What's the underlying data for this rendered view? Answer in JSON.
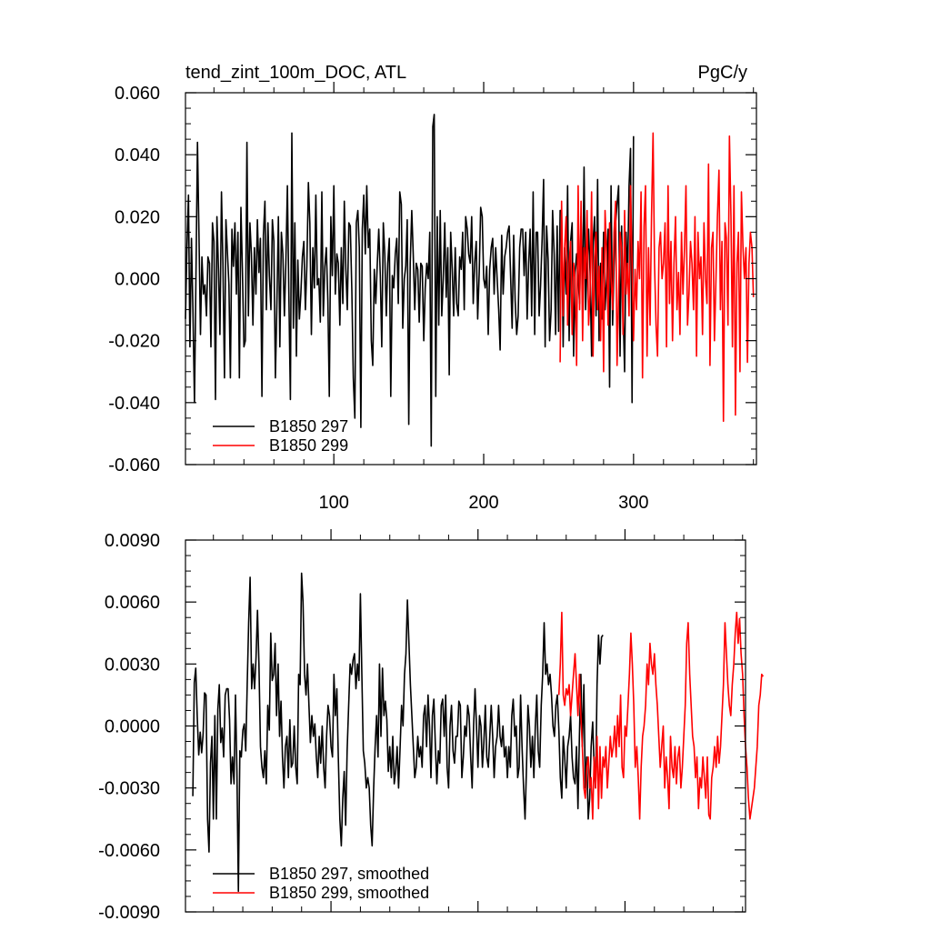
{
  "chart_data": [
    {
      "type": "line",
      "title": "tend_zint_100m_DOC, ATL",
      "units": "PgC/y",
      "xlabel": "",
      "ylabel": "",
      "xlim": [
        1,
        382
      ],
      "ylim": [
        -0.06,
        0.06
      ],
      "x_ticks": [
        100,
        200,
        300
      ],
      "y_ticks": [
        -0.06,
        -0.04,
        -0.02,
        0.0,
        0.02,
        0.04,
        0.06
      ],
      "y_tick_labels": [
        "-0.060",
        "-0.040",
        "-0.020",
        "0.000",
        "0.020",
        "0.040",
        "0.060"
      ],
      "x_tick_labels": [
        "100",
        "200",
        "300"
      ],
      "grid": false,
      "legend_position": "bottom-left",
      "series": [
        {
          "name": "B1850 297",
          "color": "#000000",
          "x_start": 1,
          "values": [
            -0.013,
            0.01,
            0.027,
            -0.022,
            0.013,
            -0.01,
            -0.04,
            0.0,
            0.044,
            0.015,
            -0.018,
            0.007,
            -0.005,
            -0.002,
            -0.012,
            0.007,
            0.005,
            -0.022,
            0.018,
            0.012,
            -0.039,
            0.02,
            0.003,
            -0.018,
            0.028,
            0.005,
            -0.032,
            0.019,
            0.008,
            -0.002,
            -0.032,
            0.016,
            0.004,
            0.018,
            -0.005,
            0.015,
            -0.032,
            0.023,
            0.003,
            -0.022,
            -0.02,
            0.044,
            -0.012,
            0.018,
            0.008,
            -0.015,
            0.01,
            -0.005,
            0.019,
            0.002,
            0.013,
            -0.038,
            0.014,
            0.025,
            -0.01,
            0.018,
            0.001,
            -0.01,
            0.019,
            0.012,
            -0.032,
            -0.009,
            0.02,
            -0.022,
            0.015,
            0.008,
            -0.012,
            0.005,
            0.03,
            -0.005,
            -0.039,
            0.047,
            -0.016,
            0.018,
            -0.025,
            0.006,
            -0.013,
            -0.005,
            0.007,
            0.012,
            -0.01,
            0.004,
            0.031,
            0.018,
            -0.018,
            0.01,
            -0.003,
            0.027,
            -0.002,
            0.0,
            -0.014,
            0.028,
            -0.012,
            0.004,
            0.01,
            -0.007,
            -0.038,
            0.02,
            0.001,
            0.03,
            -0.005,
            0.008,
            0.005,
            -0.015,
            0.01,
            -0.008,
            0.025,
            0.003,
            -0.01,
            0.018,
            0.017,
            -0.004,
            -0.032,
            -0.045,
            0.018,
            0.022,
            0.01,
            -0.048,
            0.016,
            0.027,
            0.008,
            0.03,
            0.01,
            0.016,
            -0.02,
            -0.028,
            0.003,
            -0.008,
            0.005,
            0.016,
            0.001,
            -0.022,
            0.018,
            0.008,
            -0.012,
            0.005,
            0.013,
            -0.038,
            0.001,
            -0.003,
            0.008,
            0.013,
            -0.008,
            0.028,
            0.024,
            -0.016,
            0.0,
            0.004,
            0.019,
            -0.047,
            0.005,
            0.022,
            0.008,
            -0.01,
            0.005,
            0.003,
            -0.014,
            0.005,
            0.004,
            -0.02,
            -0.003,
            0.005,
            0.0,
            0.015,
            -0.054,
            0.049,
            0.053,
            -0.038,
            0.02,
            -0.015,
            0.022,
            -0.012,
            0.0,
            0.018,
            -0.006,
            0.01,
            -0.031,
            0.015,
            0.003,
            -0.012,
            0.01,
            -0.008,
            -0.012,
            0.007,
            0.003,
            0.015,
            -0.01,
            0.02,
            0.016,
            0.008,
            0.005,
            0.02,
            -0.008,
            0.005,
            0.012,
            -0.013,
            0.002,
            0.023,
            0.02,
            0.0,
            -0.003,
            0.004,
            -0.018,
            0.003,
            0.01,
            0.013,
            -0.005,
            0.01,
            0.0,
            -0.01,
            -0.023,
            0.014,
            -0.005,
            0.007,
            0.01,
            0.015,
            0.017,
            0.0,
            -0.016,
            0.014,
            -0.007,
            -0.018,
            -0.012,
            0.01,
            0.016,
            0.016,
            0.001,
            0.015,
            -0.013,
            0.005,
            0.016,
            -0.012,
            0.028,
            -0.018,
            0.015,
            0.015,
            -0.012,
            -0.002,
            0.013,
            0.032,
            -0.022,
            0.017,
            0.006,
            -0.02,
            -0.01,
            0.022,
            0.008,
            -0.018,
            0.017,
            -0.017,
            0.022,
            0.022,
            -0.022,
            0.01,
            -0.005,
            0.03,
            -0.02,
            0.012,
            0.018,
            -0.025,
            0.002,
            0.008,
            0.0,
            -0.008,
            0.02,
            -0.005,
            0.036,
            -0.01,
            0.004,
            0.016,
            0.002,
            -0.025,
            0.012,
            0.02,
            -0.012,
            0.032,
            -0.02,
            0.005,
            -0.013,
            0.015,
            -0.01,
            0.0,
            0.016,
            -0.035,
            0.03,
            -0.015,
            0.004,
            0.018,
            0.024,
            0.03,
            -0.025,
            0.017,
            -0.01,
            -0.03,
            0.015,
            0.0,
            0.03,
            0.042,
            -0.04,
            0.046
          ]
        },
        {
          "name": "B1850 299",
          "color": "#ff0000",
          "x_start": 251,
          "values": [
            -0.027,
            0.025,
            -0.012,
            0.01,
            0.02,
            -0.015,
            0.005,
            0.012,
            -0.018,
            0.005,
            0.0,
            -0.028,
            0.03,
            -0.01,
            0.025,
            -0.02,
            0.01,
            0.0,
            0.022,
            -0.015,
            -0.005,
            0.028,
            -0.025,
            0.007,
            0.015,
            -0.01,
            0.004,
            -0.02,
            0.01,
            -0.03,
            0.022,
            0.008,
            -0.015,
            0.018,
            0.0,
            -0.01,
            0.015,
            0.025,
            -0.028,
            -0.005,
            0.015,
            0.01,
            -0.018,
            0.022,
            -0.005,
            0.005,
            -0.012,
            0.03,
            0.005,
            -0.02,
            0.003,
            -0.01,
            0.012,
            0.0,
            0.028,
            -0.032,
            0.017,
            0.03,
            -0.025,
            0.01,
            -0.015,
            0.02,
            0.047,
            0.005,
            -0.015,
            -0.025,
            0.01,
            0.015,
            0.0,
            0.005,
            0.018,
            -0.022,
            0.03,
            -0.008,
            0.012,
            -0.02,
            0.005,
            0.02,
            -0.01,
            0.002,
            -0.018,
            0.015,
            -0.005,
            0.01,
            0.03,
            -0.015,
            -0.005,
            0.012,
            0.005,
            -0.01,
            0.02,
            -0.025,
            0.015,
            0.0,
            0.007,
            -0.018,
            0.018,
            0.0,
            -0.008,
            0.037,
            -0.028,
            0.01,
            0.015,
            -0.02,
            0.0,
            0.02,
            0.035,
            -0.01,
            0.012,
            -0.046,
            0.018,
            0.013,
            -0.015,
            0.046,
            0.02,
            -0.022,
            0.03,
            -0.044,
            0.005,
            0.015,
            -0.03,
            0.028,
            0.01,
            0.0,
            0.01,
            -0.027,
            0.005,
            0.015,
            0.01,
            -0.006
          ]
        }
      ]
    },
    {
      "type": "line",
      "title": "",
      "xlabel": "",
      "ylabel": "",
      "xlim": [
        1,
        382
      ],
      "ylim": [
        -0.009,
        0.009
      ],
      "x_ticks": [
        100,
        200,
        300
      ],
      "x_tick_labels": [],
      "y_ticks": [
        -0.009,
        -0.006,
        -0.003,
        0.0,
        0.003,
        0.006,
        0.009
      ],
      "y_tick_labels": [
        "-0.0090",
        "-0.0060",
        "-0.0030",
        "0.0000",
        "0.0030",
        "0.0060",
        "0.0090"
      ],
      "grid": false,
      "legend_position": "bottom-left",
      "series": [
        {
          "name": "B1850 297, smoothed",
          "color": "#000000",
          "x_start": 6,
          "values": [
            -0.0034,
            0.0021,
            0.0028,
            0.0005,
            -0.0014,
            -0.0003,
            -0.0013,
            -0.0004,
            0.0016,
            0.0015,
            -0.0045,
            -0.0061,
            -0.0018,
            -0.0005,
            -0.0045,
            0.0005,
            -0.0045,
            0.0008,
            0.002,
            -0.0008,
            -0.0001,
            -0.0015,
            0.0015,
            0.0018,
            0.0018,
            0.0003,
            -0.0028,
            -0.0015,
            -0.0028,
            0.0015,
            -0.0022,
            -0.008,
            -0.0012,
            -0.0015,
            -0.0002,
            0.0001,
            -0.0012,
            0.002,
            0.005,
            0.0072,
            0.0018,
            0.003,
            0.0018,
            0.0033,
            0.0056,
            0.003,
            -0.001,
            -0.002,
            -0.0025,
            -0.0012,
            -0.0028,
            0.001,
            -0.0002,
            0.0045,
            0.0022,
            0.0025,
            0.004,
            0.0005,
            0.003,
            -0.0005,
            0.0012,
            -0.0015,
            -0.003,
            -0.001,
            -0.0005,
            -0.0025,
            0.0003,
            -0.002,
            -0.0018,
            0.0,
            -0.002,
            -0.0028,
            0.0025,
            0.002,
            0.0074,
            0.006,
            0.0025,
            0.0015,
            0.003,
            0.001,
            -0.0008,
            0.0005,
            -0.0005,
            0.0001,
            -0.0015,
            -0.0025,
            -0.0005,
            -0.0018,
            0.0,
            -0.002,
            -0.003,
            -0.0005,
            0.001,
            0.0005,
            -0.001,
            -0.0015,
            0.0025,
            0.0005,
            0.0018,
            -0.0015,
            -0.0045,
            -0.0058,
            -0.0035,
            -0.0022,
            -0.0048,
            -0.0012,
            0.001,
            0.003,
            0.0025,
            0.0032,
            0.0035,
            0.0018,
            0.003,
            0.0022,
            0.0064,
            0.0025,
            -0.0012,
            -0.0018,
            -0.003,
            -0.0025,
            -0.003,
            -0.0048,
            -0.0058,
            -0.003,
            -0.001,
            0.0005,
            -0.0015,
            0.003,
            -0.0005,
            0.0028,
            0.0005,
            0.0012,
            0.0003,
            -0.0022,
            -0.001,
            -0.0025,
            -0.0005,
            -0.0028,
            -0.0022,
            -0.001,
            -0.003,
            -0.001,
            0.001,
            0.0,
            0.0025,
            0.0035,
            0.0061,
            0.004,
            0.002,
            0.0005,
            -0.001,
            -0.0025,
            -0.002,
            -0.0005,
            -0.0015,
            -0.001,
            -0.002,
            0.0005,
            0.001,
            -0.001,
            0.0015,
            0.0,
            -0.0025,
            0.0005,
            0.0013,
            -0.001,
            -0.0028,
            -0.0012,
            -0.0018,
            0.001,
            0.0013,
            -0.0005,
            0.0015,
            -0.002,
            -0.003,
            0.0,
            0.001,
            -0.0012,
            -0.0018,
            -0.0005,
            -0.0005,
            0.0012,
            0.001,
            -0.0025,
            -0.0015,
            0.0,
            -0.0005,
            0.001,
            0.0005,
            -0.0015,
            -0.003,
            0.0,
            0.0018,
            0.0,
            -0.002,
            0.0005,
            0.0,
            -0.002,
            -0.0008,
            0.001,
            -0.0015,
            -0.002,
            -0.0005,
            0.001,
            -0.0005,
            -0.0025,
            -0.001,
            -0.0005,
            0.001,
            -0.0005,
            -0.001,
            0.0,
            -0.0015,
            -0.001,
            -0.0025,
            -0.001,
            -0.002,
            0.0005,
            0.0013,
            -0.0005,
            0.0,
            -0.0025,
            -0.002,
            0.0015,
            -0.001,
            -0.003,
            -0.0045,
            -0.002,
            0.001,
            0.0,
            -0.002,
            -0.0005,
            -0.0025,
            0.0,
            0.0015,
            -0.0012,
            -0.002,
            0.001,
            0.0025,
            0.005,
            0.0025,
            0.003,
            0.002,
            0.0025,
            0.0015,
            0.0,
            -0.0005,
            0.001,
            0.0015,
            -0.0002,
            -0.0025,
            -0.0035,
            -0.0005,
            -0.0015,
            -0.003,
            -0.001,
            -0.0005,
            0.0005,
            -0.0015,
            -0.0025,
            -0.0028,
            -0.001,
            -0.004,
            -0.0005,
            0.0025,
            -0.001,
            0.002,
            -0.003,
            -0.0015,
            -0.0045,
            -0.0035,
            -0.001,
            0.0002,
            -0.002,
            -0.003,
            0.002,
            0.0044,
            0.003,
            0.0043,
            0.0044
          ]
        },
        {
          "name": "B1850 299, smoothed",
          "color": "#ff0000",
          "x_start": 255,
          "values": [
            0.0015,
            0.003,
            0.0055,
            0.0015,
            0.001,
            0.0018,
            0.0015,
            0.002,
            0.0005,
            0.0015,
            0.0025,
            0.0035,
            0.002,
            0.0005,
            0.0025,
            0.0005,
            -0.001,
            -0.003,
            -0.0035,
            -0.002,
            -0.0015,
            -0.003,
            -0.0025,
            -0.0045,
            -0.0015,
            -0.003,
            -0.0005,
            -0.004,
            -0.001,
            -0.0035,
            -0.0015,
            -0.002,
            -0.001,
            -0.003,
            -0.0018,
            -0.0005,
            -0.0015,
            -0.001,
            0.0,
            -0.0015,
            0.0005,
            -0.001,
            0.0015,
            -0.002,
            -0.0025,
            0.0,
            -0.0005,
            0.001,
            0.0025,
            0.0045,
            0.003,
            0.001,
            -0.002,
            -0.001,
            -0.0025,
            -0.0045,
            -0.002,
            -0.0005,
            0.0,
            0.001,
            0.003,
            0.002,
            0.004,
            0.003,
            0.0025,
            0.0035,
            0.002,
            0.001,
            -0.0005,
            -0.002,
            -0.001,
            0.0,
            -0.003,
            -0.0015,
            -0.0025,
            -0.004,
            -0.0005,
            -0.002,
            -0.0025,
            -0.001,
            -0.0028,
            -0.0015,
            -0.001,
            -0.003,
            -0.002,
            -0.0005,
            0.001,
            0.004,
            0.005,
            0.0025,
            0.001,
            -0.0005,
            -0.001,
            -0.0025,
            -0.0015,
            -0.004,
            -0.0025,
            -0.003,
            -0.0015,
            -0.0025,
            -0.0035,
            -0.0015,
            -0.0043,
            -0.0045,
            -0.0025,
            -0.002,
            -0.001,
            -0.002,
            -0.0005,
            -0.0018,
            -0.001,
            0.0005,
            0.002,
            0.005,
            0.0035,
            0.002,
            0.001,
            0.0005,
            0.002,
            0.003,
            0.0045,
            0.0055,
            0.004,
            0.0052,
            0.0035,
            0.0025,
            0.0005,
            -0.001,
            -0.002,
            -0.0035,
            -0.0045,
            -0.004,
            -0.0035,
            -0.003,
            -0.002,
            -0.001,
            0.001,
            0.0015,
            0.0025,
            0.0024
          ]
        }
      ]
    }
  ]
}
